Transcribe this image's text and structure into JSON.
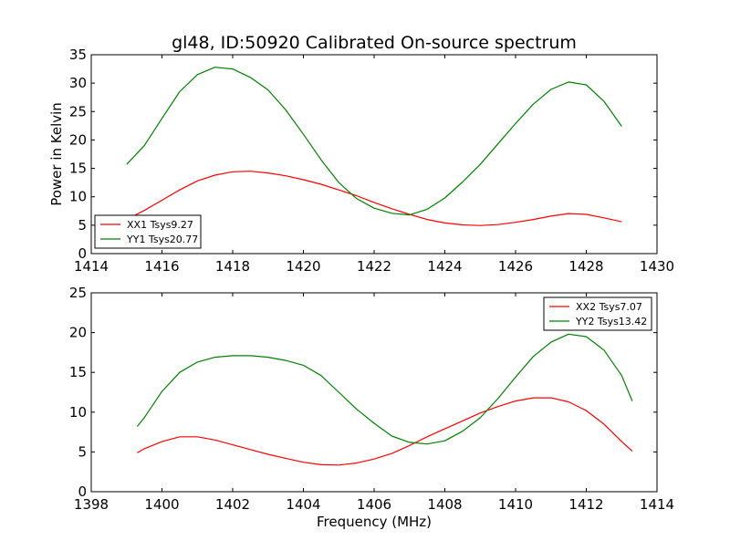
{
  "title": "gl48, ID:50920 Calibrated On-source spectrum",
  "ylabel": "Power in Kelvin",
  "xlabel": "Frequency (MHz)",
  "colors": {
    "red": "#ff0000",
    "green": "#008000",
    "axis": "#000000"
  },
  "chart_data": [
    {
      "type": "line",
      "title": "gl48, ID:50920 Calibrated On-source spectrum",
      "ylabel": "Power in Kelvin",
      "xlabel": "",
      "xlim": [
        1414,
        1430
      ],
      "ylim": [
        0,
        35
      ],
      "xticks": [
        "1414",
        "1416",
        "1418",
        "1420",
        "1422",
        "1424",
        "1426",
        "1428",
        "1430"
      ],
      "yticks": [
        "0",
        "5",
        "10",
        "15",
        "20",
        "25",
        "30",
        "35"
      ],
      "legend_position": "lower-left",
      "series": [
        {
          "name": "XX1 Tsys9.27",
          "color": "#ff0000",
          "points": [
            [
              1415.0,
              6.0
            ],
            [
              1415.5,
              7.6
            ],
            [
              1416.0,
              9.4
            ],
            [
              1416.5,
              11.2
            ],
            [
              1417.0,
              12.8
            ],
            [
              1417.5,
              13.8
            ],
            [
              1418.0,
              14.4
            ],
            [
              1418.5,
              14.5
            ],
            [
              1419.0,
              14.2
            ],
            [
              1419.5,
              13.7
            ],
            [
              1420.0,
              13.0
            ],
            [
              1420.5,
              12.2
            ],
            [
              1421.0,
              11.2
            ],
            [
              1421.5,
              10.2
            ],
            [
              1422.0,
              9.0
            ],
            [
              1422.5,
              7.9
            ],
            [
              1423.0,
              6.9
            ],
            [
              1423.5,
              6.0
            ],
            [
              1424.0,
              5.4
            ],
            [
              1424.5,
              5.05
            ],
            [
              1425.0,
              4.95
            ],
            [
              1425.5,
              5.1
            ],
            [
              1426.0,
              5.5
            ],
            [
              1426.5,
              6.0
            ],
            [
              1427.0,
              6.6
            ],
            [
              1427.5,
              7.05
            ],
            [
              1428.0,
              6.9
            ],
            [
              1428.5,
              6.3
            ],
            [
              1429.0,
              5.6
            ]
          ]
        },
        {
          "name": "YY1 Tsys20.77",
          "color": "#008000",
          "points": [
            [
              1415.0,
              15.7
            ],
            [
              1415.5,
              19.0
            ],
            [
              1416.0,
              23.8
            ],
            [
              1416.5,
              28.5
            ],
            [
              1417.0,
              31.5
            ],
            [
              1417.5,
              32.8
            ],
            [
              1418.0,
              32.5
            ],
            [
              1418.5,
              31.0
            ],
            [
              1419.0,
              28.8
            ],
            [
              1419.5,
              25.3
            ],
            [
              1420.0,
              21.0
            ],
            [
              1420.5,
              16.5
            ],
            [
              1421.0,
              12.5
            ],
            [
              1421.5,
              9.7
            ],
            [
              1422.0,
              8.0
            ],
            [
              1422.5,
              7.1
            ],
            [
              1423.0,
              6.8
            ],
            [
              1423.5,
              7.8
            ],
            [
              1424.0,
              9.8
            ],
            [
              1424.5,
              12.6
            ],
            [
              1425.0,
              15.7
            ],
            [
              1425.5,
              19.3
            ],
            [
              1426.0,
              22.9
            ],
            [
              1426.5,
              26.3
            ],
            [
              1427.0,
              28.9
            ],
            [
              1427.5,
              30.2
            ],
            [
              1428.0,
              29.7
            ],
            [
              1428.5,
              26.8
            ],
            [
              1429.0,
              22.4
            ]
          ]
        }
      ]
    },
    {
      "type": "line",
      "title": "",
      "ylabel": "",
      "xlabel": "Frequency (MHz)",
      "xlim": [
        1398,
        1414
      ],
      "ylim": [
        0,
        25
      ],
      "xticks": [
        "1398",
        "1400",
        "1402",
        "1404",
        "1406",
        "1408",
        "1410",
        "1412",
        "1414"
      ],
      "yticks": [
        "0",
        "5",
        "10",
        "15",
        "20",
        "25"
      ],
      "legend_position": "upper-right",
      "series": [
        {
          "name": "XX2 Tsys7.07",
          "color": "#ff0000",
          "points": [
            [
              1399.3,
              4.9
            ],
            [
              1399.5,
              5.4
            ],
            [
              1400.0,
              6.3
            ],
            [
              1400.5,
              6.9
            ],
            [
              1401.0,
              6.9
            ],
            [
              1401.5,
              6.5
            ],
            [
              1402.0,
              5.9
            ],
            [
              1402.5,
              5.3
            ],
            [
              1403.0,
              4.7
            ],
            [
              1403.5,
              4.2
            ],
            [
              1404.0,
              3.7
            ],
            [
              1404.5,
              3.4
            ],
            [
              1405.0,
              3.35
            ],
            [
              1405.5,
              3.6
            ],
            [
              1406.0,
              4.1
            ],
            [
              1406.5,
              4.8
            ],
            [
              1407.0,
              5.8
            ],
            [
              1407.5,
              6.9
            ],
            [
              1408.0,
              7.9
            ],
            [
              1408.5,
              8.9
            ],
            [
              1409.0,
              9.9
            ],
            [
              1409.5,
              10.7
            ],
            [
              1410.0,
              11.4
            ],
            [
              1410.5,
              11.8
            ],
            [
              1411.0,
              11.8
            ],
            [
              1411.5,
              11.3
            ],
            [
              1412.0,
              10.2
            ],
            [
              1412.5,
              8.5
            ],
            [
              1413.0,
              6.3
            ],
            [
              1413.3,
              5.1
            ]
          ]
        },
        {
          "name": "YY2 Tsys13.42",
          "color": "#008000",
          "points": [
            [
              1399.3,
              8.2
            ],
            [
              1399.5,
              9.3
            ],
            [
              1400.0,
              12.6
            ],
            [
              1400.5,
              15.0
            ],
            [
              1401.0,
              16.3
            ],
            [
              1401.5,
              16.9
            ],
            [
              1402.0,
              17.1
            ],
            [
              1402.5,
              17.1
            ],
            [
              1403.0,
              16.9
            ],
            [
              1403.5,
              16.5
            ],
            [
              1404.0,
              15.9
            ],
            [
              1404.5,
              14.6
            ],
            [
              1405.0,
              12.5
            ],
            [
              1405.5,
              10.4
            ],
            [
              1406.0,
              8.6
            ],
            [
              1406.5,
              7.0
            ],
            [
              1407.0,
              6.2
            ],
            [
              1407.5,
              6.0
            ],
            [
              1408.0,
              6.4
            ],
            [
              1408.5,
              7.6
            ],
            [
              1409.0,
              9.3
            ],
            [
              1409.5,
              11.7
            ],
            [
              1410.0,
              14.4
            ],
            [
              1410.5,
              17.0
            ],
            [
              1411.0,
              18.8
            ],
            [
              1411.5,
              19.8
            ],
            [
              1412.0,
              19.5
            ],
            [
              1412.5,
              17.8
            ],
            [
              1413.0,
              14.6
            ],
            [
              1413.3,
              11.4
            ]
          ]
        }
      ]
    }
  ]
}
